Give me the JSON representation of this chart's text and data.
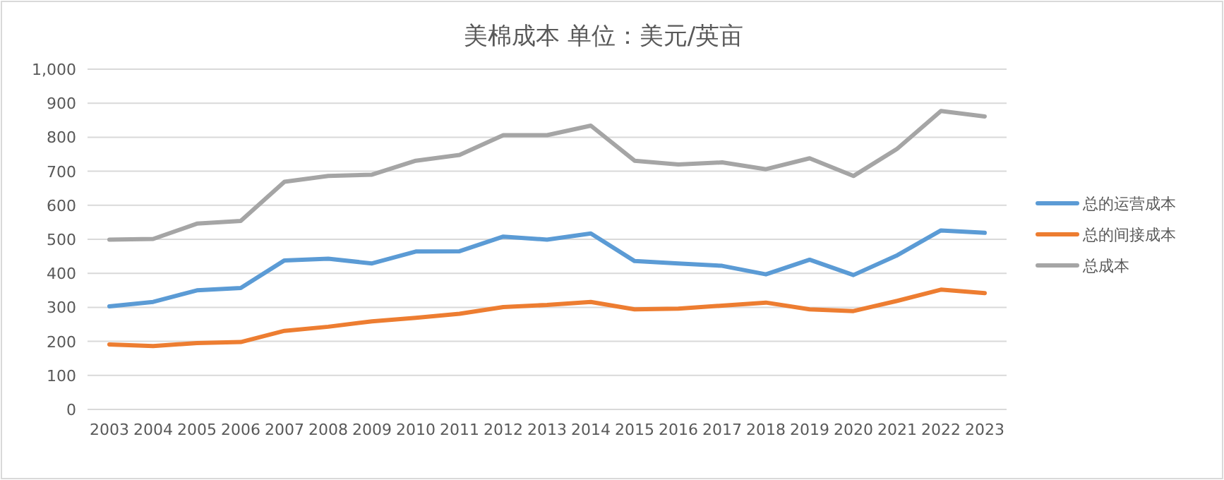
{
  "chart_data": {
    "type": "line",
    "title": "美棉成本   单位：美元/英亩",
    "categories": [
      "2003",
      "2004",
      "2005",
      "2006",
      "2007",
      "2008",
      "2009",
      "2010",
      "2011",
      "2012",
      "2013",
      "2014",
      "2015",
      "2016",
      "2017",
      "2018",
      "2019",
      "2020",
      "2021",
      "2022",
      "2023"
    ],
    "series": [
      {
        "name": "总的运营成本",
        "color": "#5b9bd5",
        "values": [
          303,
          316,
          350,
          357,
          438,
          443,
          429,
          464,
          465,
          508,
          499,
          517,
          436,
          429,
          422,
          397,
          440,
          395,
          453,
          526,
          519
        ]
      },
      {
        "name": "总的间接成本",
        "color": "#ed7d31",
        "values": [
          191,
          186,
          195,
          198,
          231,
          243,
          259,
          269,
          281,
          301,
          307,
          316,
          294,
          296,
          305,
          314,
          294,
          289,
          319,
          352,
          342
        ]
      },
      {
        "name": "总成本",
        "color": "#a5a5a5",
        "values": [
          499,
          501,
          546,
          554,
          669,
          686,
          690,
          731,
          748,
          806,
          806,
          834,
          731,
          720,
          726,
          706,
          738,
          686,
          766,
          877,
          861
        ]
      }
    ],
    "ylim": [
      0,
      1000
    ],
    "yticks": [
      0,
      100,
      200,
      300,
      400,
      500,
      600,
      700,
      800,
      900,
      {
        "value": 1000,
        "label": "1,000"
      }
    ],
    "grid": "y",
    "legend": "right",
    "marker": "none",
    "line_style": "solid"
  }
}
